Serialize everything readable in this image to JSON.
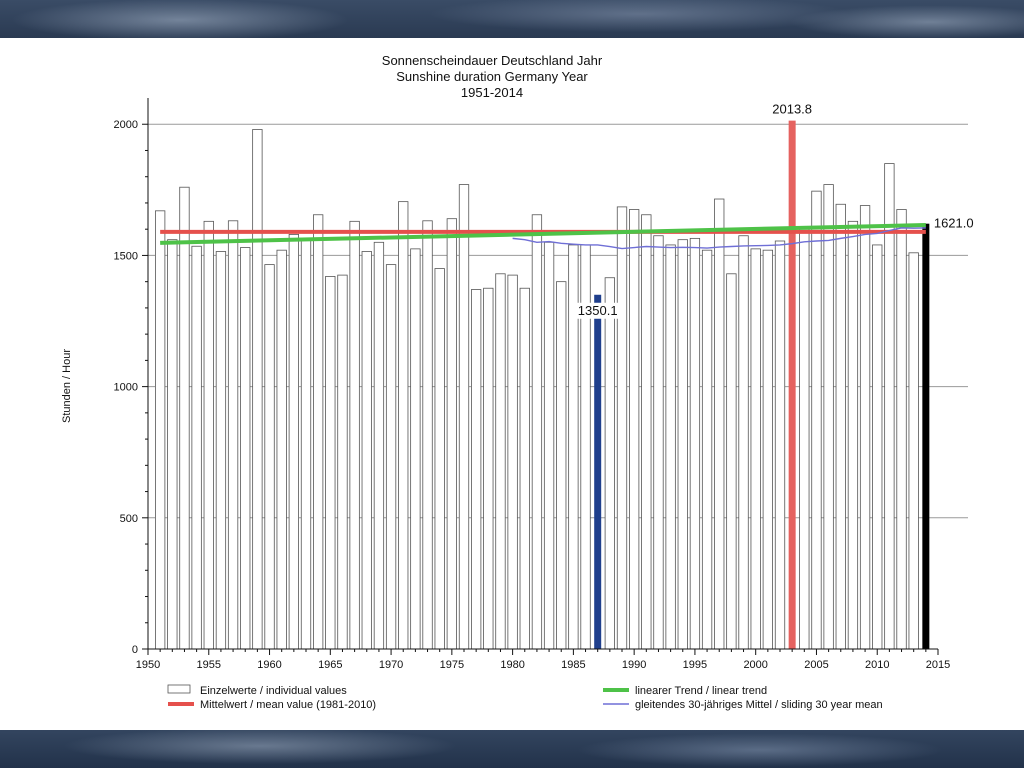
{
  "chart_data": {
    "type": "bar",
    "title": [
      "Sonnenscheindauer Deutschland Jahr",
      "Sunshine duration Germany Year",
      "1951-2014"
    ],
    "ylabel": "Stunden / Hour",
    "xlabel": "",
    "xlim": [
      1950,
      2015
    ],
    "ylim": [
      0,
      2100
    ],
    "x_ticks": [
      1950,
      1955,
      1960,
      1965,
      1970,
      1975,
      1980,
      1985,
      1990,
      1995,
      2000,
      2005,
      2010,
      2015
    ],
    "y_ticks": [
      0,
      500,
      1000,
      1500,
      2000
    ],
    "grid": "horizontal",
    "legend_position": "bottom",
    "years": [
      1951,
      1952,
      1953,
      1954,
      1955,
      1956,
      1957,
      1958,
      1959,
      1960,
      1961,
      1962,
      1963,
      1964,
      1965,
      1966,
      1967,
      1968,
      1969,
      1970,
      1971,
      1972,
      1973,
      1974,
      1975,
      1976,
      1977,
      1978,
      1979,
      1980,
      1981,
      1982,
      1983,
      1984,
      1985,
      1986,
      1987,
      1988,
      1989,
      1990,
      1991,
      1992,
      1993,
      1994,
      1995,
      1996,
      1997,
      1998,
      1999,
      2000,
      2001,
      2002,
      2003,
      2004,
      2005,
      2006,
      2007,
      2008,
      2009,
      2010,
      2011,
      2012,
      2013,
      2014
    ],
    "values": [
      1670,
      1560,
      1760,
      1535,
      1630,
      1515,
      1632,
      1530,
      1980,
      1465,
      1520,
      1580,
      1560,
      1655,
      1420,
      1425,
      1630,
      1515,
      1550,
      1465,
      1705,
      1525,
      1632,
      1450,
      1640,
      1770,
      1370,
      1375,
      1430,
      1425,
      1375,
      1655,
      1550,
      1400,
      1540,
      1540,
      1350.1,
      1415,
      1685,
      1675,
      1655,
      1575,
      1540,
      1560,
      1565,
      1520,
      1715,
      1430,
      1575,
      1525,
      1520,
      1555,
      2013.8,
      1600,
      1745,
      1770,
      1695,
      1630,
      1690,
      1540,
      1850,
      1675,
      1510,
      1621.0
    ],
    "highlighted": [
      {
        "year": 1987,
        "value": 1350.1,
        "label": "1350.1",
        "color": "#1f3f8c"
      },
      {
        "year": 2003,
        "value": 2013.8,
        "label": "2013.8",
        "color": "#e5625f"
      },
      {
        "year": 2014,
        "value": 1621.0,
        "label": "1621.0",
        "color": "#000000"
      }
    ],
    "mean_line": {
      "name": "Mittelwert / mean value (1981-2010)",
      "value": 1590,
      "x_range": [
        1951,
        2014
      ],
      "color": "#e5504c"
    },
    "trend_line": {
      "name": "linearer Trend / linear trend",
      "start": [
        1951,
        1548
      ],
      "end": [
        2014,
        1616
      ],
      "color": "#4ec248"
    },
    "sliding_mean": {
      "name": "gleitendes 30-jähriges Mittel / sliding 30 year mean",
      "color": "#6f6fd6",
      "x": [
        1980,
        1981,
        1982,
        1983,
        1984,
        1985,
        1986,
        1987,
        1988,
        1989,
        1990,
        1991,
        1992,
        1993,
        1994,
        1995,
        1996,
        1997,
        1998,
        1999,
        2000,
        2001,
        2002,
        2003,
        2004,
        2005,
        2006,
        2007,
        2008,
        2009,
        2010,
        2011,
        2012,
        2013,
        2014
      ],
      "y": [
        1565,
        1560,
        1550,
        1553,
        1546,
        1543,
        1540,
        1540,
        1534,
        1526,
        1530,
        1534,
        1532,
        1530,
        1531,
        1530,
        1528,
        1532,
        1534,
        1536,
        1537,
        1538,
        1540,
        1545,
        1552,
        1555,
        1557,
        1565,
        1572,
        1580,
        1584,
        1595,
        1605,
        1604,
        1605
      ]
    },
    "legend": [
      {
        "key": "individual",
        "label": "Einzelwerte / individual values",
        "color": "#ffffff"
      },
      {
        "key": "mean",
        "label": "Mittelwert / mean value (1981-2010)",
        "color": "#e5504c"
      },
      {
        "key": "trend",
        "label": "linearer Trend / linear trend",
        "color": "#4ec248"
      },
      {
        "key": "sliding",
        "label": "gleitendes 30-jähriges Mittel / sliding 30 year mean",
        "color": "#6f6fd6"
      }
    ]
  }
}
